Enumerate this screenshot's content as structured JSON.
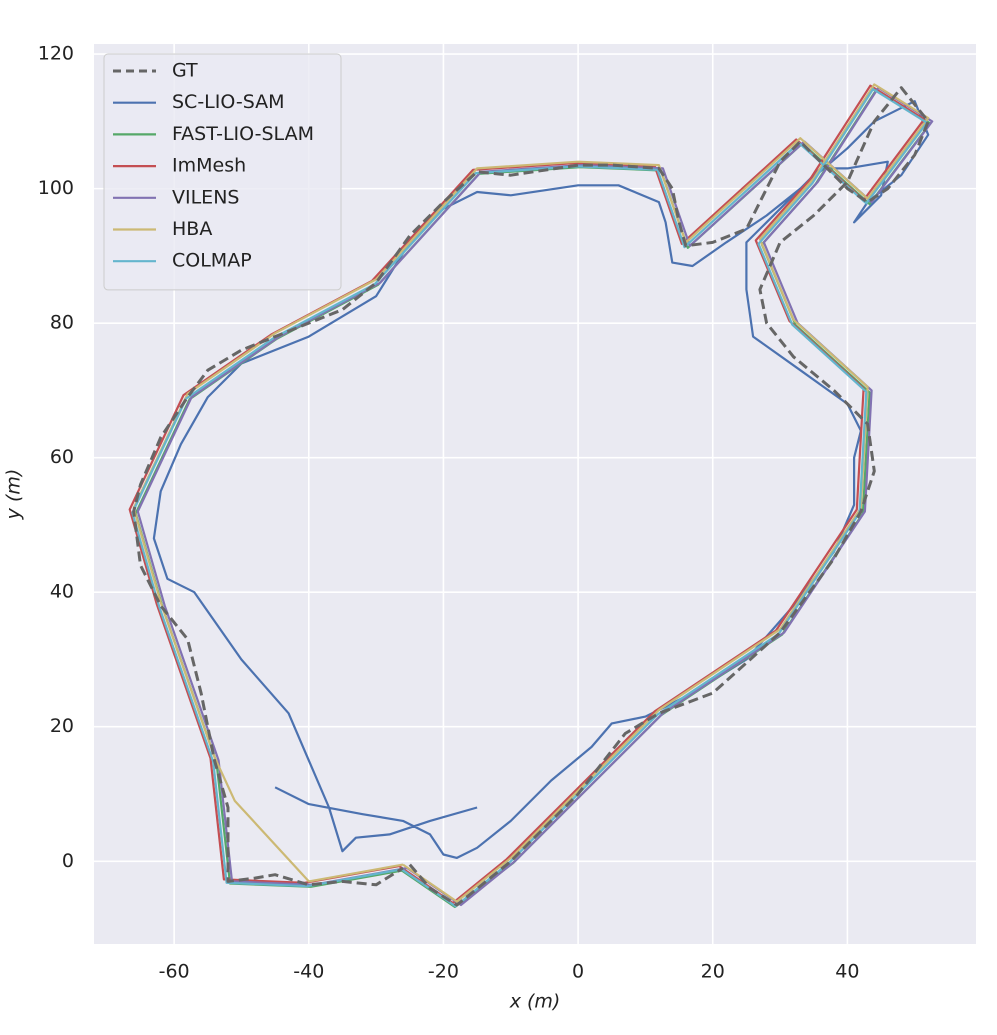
{
  "chart_data": {
    "type": "line",
    "xlabel": "x (m)",
    "ylabel": "y (m)",
    "xlim": [
      -71.9,
      59.1
    ],
    "ylim": [
      -12.3,
      121.5
    ],
    "xticks": [
      -60,
      -40,
      -20,
      0,
      20,
      40
    ],
    "yticks": [
      0,
      20,
      40,
      60,
      80,
      100,
      120
    ],
    "grid": true,
    "legend": "upper left",
    "series": [
      {
        "name": "GT",
        "color": "#666666",
        "linestyle": "dashed",
        "x": [
          -25,
          -22,
          -18,
          -10,
          0,
          7,
          12,
          20,
          30,
          38,
          42,
          44,
          43,
          38,
          32,
          28,
          27,
          30,
          35,
          40,
          44,
          48,
          52,
          50,
          46,
          43,
          40,
          35,
          33,
          30,
          25,
          20,
          16,
          15,
          14,
          12,
          5,
          0,
          -10,
          -15,
          -20,
          -25,
          -30,
          -35,
          -40,
          -45,
          -50,
          -55,
          -58,
          -62,
          -65,
          -66,
          -65,
          -62,
          -58,
          -56,
          -54,
          -52,
          -52,
          -48,
          -45,
          -40,
          -35,
          -30,
          -26
        ],
        "values": [
          -0.5,
          -4,
          -6.5,
          0,
          10,
          19,
          22,
          25,
          34,
          45,
          52,
          58,
          65,
          70,
          75,
          80,
          85,
          92,
          96,
          101,
          110,
          115,
          110,
          105,
          100,
          98,
          100,
          105,
          107,
          104,
          94,
          92,
          91.5,
          95,
          100,
          103,
          103.5,
          103.5,
          102,
          102.5,
          98,
          93,
          86,
          82,
          80,
          78,
          76,
          73,
          69,
          63,
          56,
          52,
          44,
          38,
          33,
          25,
          15,
          8,
          -3,
          -2.5,
          -2,
          -3.5,
          -3,
          -3.5,
          -1
        ]
      },
      {
        "name": "SC-LIO-SAM",
        "color": "#4c72b0",
        "linestyle": "solid",
        "x": [
          -45,
          -40,
          -32,
          -26,
          -22,
          -20,
          -18,
          -15,
          -10,
          -4,
          2,
          5,
          10,
          17,
          25,
          32,
          38,
          41,
          41,
          42,
          40,
          33,
          26,
          25,
          25,
          28,
          33,
          40,
          44,
          50,
          52,
          48,
          43,
          41,
          45,
          46,
          40,
          36,
          33,
          28,
          22,
          17,
          14,
          13,
          12,
          6,
          0,
          -10,
          -15,
          -20,
          -25,
          -30,
          -40,
          -50,
          -55,
          -59,
          -62,
          -63,
          -61,
          -57,
          -50,
          -43,
          -40,
          -37,
          -35,
          -33,
          -28,
          -22,
          -15
        ],
        "values": [
          11,
          8.5,
          7,
          6,
          4,
          1,
          0.5,
          2,
          6,
          12,
          17,
          20.5,
          21.5,
          25,
          30,
          38,
          46,
          53,
          60,
          64,
          68,
          73,
          78,
          85,
          92,
          95,
          100,
          106,
          110,
          113,
          108,
          102,
          98,
          95,
          99,
          104,
          103,
          103,
          100,
          96,
          92,
          88.5,
          89,
          95,
          98,
          100.5,
          100.5,
          99,
          99.5,
          97,
          92,
          84,
          78,
          74,
          69,
          62,
          55,
          48,
          42,
          40,
          30,
          22,
          15,
          8,
          1.5,
          3.5,
          4,
          6,
          8
        ]
      },
      {
        "name": "FAST-LIO-SLAM",
        "color": "#55a868",
        "linestyle": "solid",
        "x": [
          -26.3,
          -18.3,
          -9.7,
          0.3,
          12.3,
          30.3,
          42.3,
          43.3,
          32.3,
          27.3,
          35.3,
          44.3,
          52.3,
          43.3,
          33.3,
          16.3,
          12.3,
          0.3,
          -14.7,
          -29.7,
          -44.7,
          -57.7,
          -65.7,
          -61.7,
          -53.7,
          -51.7,
          -39.7,
          -25.7
        ],
        "values": [
          -1.3,
          -6.8,
          -0.3,
          9.7,
          21.7,
          33.7,
          51.7,
          69.7,
          79.7,
          91.7,
          100.7,
          114.7,
          109.7,
          97.7,
          106.7,
          91.2,
          102.7,
          103.2,
          102.2,
          85.7,
          77.7,
          68.7,
          51.7,
          37.7,
          14.7,
          -3.3,
          -3.8,
          -1.3
        ]
      },
      {
        "name": "ImMesh",
        "color": "#c44e52",
        "linestyle": "solid",
        "x": [
          -26.6,
          -18.6,
          -10.6,
          -0.6,
          11.4,
          29.4,
          41.4,
          42.4,
          31.4,
          26.4,
          34.4,
          43.4,
          51.4,
          42.4,
          32.4,
          15.4,
          11.4,
          -0.6,
          -15.6,
          -30.6,
          -45.6,
          -58.6,
          -66.6,
          -62.6,
          -54.6,
          -52.6,
          -40.6,
          -26.6
        ],
        "values": [
          -0.7,
          -6.2,
          0.3,
          10.3,
          22.3,
          34.3,
          52.3,
          70.3,
          80.3,
          92.3,
          101.3,
          115.3,
          110.3,
          98.3,
          107.3,
          91.8,
          103.3,
          103.8,
          102.8,
          86.3,
          78.3,
          69.3,
          52.3,
          38.3,
          15.3,
          -2.7,
          -3.2,
          -0.7
        ]
      },
      {
        "name": "VILENS",
        "color": "#8172b2",
        "linestyle": "solid",
        "x": [
          -25.4,
          -17.4,
          -9.4,
          0.6,
          12.6,
          30.6,
          42.6,
          43.6,
          32.6,
          27.6,
          35.6,
          44.6,
          52.6,
          43.6,
          33.6,
          16.6,
          12.6,
          0.6,
          -14.4,
          -29.4,
          -44.4,
          -57.4,
          -65.4,
          -61.4,
          -53.4,
          -51.4,
          -39.4,
          -25.4
        ],
        "values": [
          -1,
          -6.5,
          0,
          10,
          22,
          34,
          52,
          70,
          80,
          92,
          101,
          115,
          110,
          98,
          107,
          91.5,
          103,
          103.5,
          102.5,
          86,
          78,
          69,
          52,
          38,
          15,
          -3,
          -3.5,
          -1
        ]
      },
      {
        "name": "HBA",
        "color": "#ccb974",
        "linestyle": "solid",
        "x": [
          -26,
          -18,
          -10,
          0,
          12,
          30,
          42,
          43,
          32,
          27,
          35,
          44,
          52,
          43,
          33,
          16,
          12,
          0,
          -15,
          -30,
          -45,
          -58,
          -66,
          -62,
          -54,
          -51,
          -40,
          -26
        ],
        "values": [
          -0.5,
          -6,
          0.5,
          10.5,
          22.5,
          34.5,
          52.5,
          70.5,
          80.5,
          92.5,
          101.5,
          115.5,
          110.5,
          98.5,
          107.5,
          92,
          103.5,
          104,
          103,
          86.5,
          78.5,
          69.5,
          52.5,
          38.5,
          15.5,
          9,
          -3,
          -0.5
        ]
      },
      {
        "name": "COLMAP",
        "color": "#64b5cd",
        "linestyle": "solid",
        "x": [
          -26.2,
          -18.2,
          -10.2,
          -0.2,
          11.8,
          29.8,
          41.8,
          42.8,
          31.8,
          26.8,
          34.8,
          43.8,
          51.8,
          42.8,
          32.8,
          15.8,
          11.8,
          -0.2,
          -15.2,
          -30.2,
          -45.2,
          -58.2,
          -66.2,
          -62.2,
          -54.2,
          -52.2,
          -40.2,
          -26.2
        ],
        "values": [
          -1.2,
          -6.7,
          -0.2,
          9.8,
          21.8,
          33.8,
          51.8,
          69.8,
          79.8,
          91.8,
          100.8,
          114.8,
          109.8,
          97.8,
          106.8,
          91.3,
          102.8,
          103.3,
          102.3,
          85.8,
          77.8,
          68.8,
          51.8,
          37.8,
          14.8,
          -3.2,
          -3.7,
          -1.2
        ]
      }
    ]
  }
}
